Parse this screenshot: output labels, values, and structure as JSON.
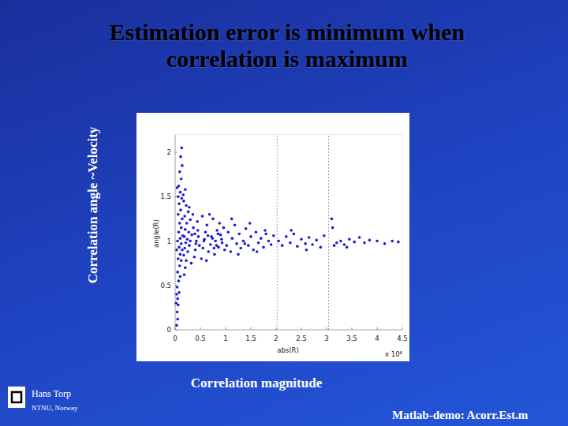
{
  "slide": {
    "title": "Estimation error is minimum when correlation is maximum",
    "y_caption": "Correlation angle ~Velocity",
    "x_caption": "Correlation magnitude",
    "author": "Hans Torp",
    "affiliation": "NTNU, Norway",
    "footer": "Matlab-demo: Acorr.Est.m"
  },
  "chart_data": {
    "type": "scatter",
    "x_label": "abs(R)",
    "y_label": "angle(R)",
    "x_multiplier": "x 10⁶",
    "xlim": [
      0,
      4.5
    ],
    "ylim": [
      0,
      2.2
    ],
    "xticks": [
      0,
      0.5,
      1,
      1.5,
      2,
      2.5,
      3,
      3.5,
      4,
      4.5
    ],
    "yticks": [
      0,
      0.5,
      1,
      1.5,
      2
    ],
    "vlines": [
      2.02,
      3.04
    ],
    "series": [
      {
        "color": "#1c1cd6",
        "marker": "dot",
        "x": [
          0.03,
          0.05,
          0.04,
          0.06,
          0.05,
          0.08,
          0.04,
          0.07,
          0.1,
          0.05,
          0.09,
          0.12,
          0.06,
          0.1,
          0.14,
          0.08,
          0.12,
          0.05,
          0.1,
          0.15,
          0.07,
          0.12,
          0.09,
          0.14,
          0.06,
          0.11,
          0.08,
          0.13,
          0.1,
          0.07,
          0.12,
          0.09,
          0.14,
          0.11,
          0.13,
          0.03,
          0.02,
          0.04,
          0.03,
          0.06,
          0.18,
          0.2,
          0.22,
          0.17,
          0.25,
          0.19,
          0.28,
          0.21,
          0.3,
          0.24,
          0.18,
          0.33,
          0.27,
          0.2,
          0.36,
          0.23,
          0.3,
          0.19,
          0.26,
          0.22,
          0.17,
          0.28,
          0.4,
          0.42,
          0.45,
          0.38,
          0.48,
          0.35,
          0.44,
          0.16,
          0.2,
          0.32,
          0.46,
          0.39,
          0.41,
          0.52,
          0.55,
          0.58,
          0.6,
          0.63,
          0.66,
          0.7,
          0.72,
          0.75,
          0.78,
          0.8,
          0.83,
          0.86,
          0.9,
          0.93,
          0.96,
          0.98,
          0.54,
          0.62,
          0.68,
          0.74,
          0.82,
          0.88,
          0.57,
          0.65,
          0.77,
          0.92,
          0.85,
          1.02,
          1.05,
          1.1,
          1.13,
          1.18,
          1.22,
          1.27,
          1.3,
          1.35,
          1.4,
          1.45,
          1.5,
          1.55,
          1.6,
          1.65,
          1.7,
          1.75,
          1.8,
          1.85,
          1.9,
          1.95,
          1.12,
          1.25,
          1.48,
          1.62,
          1.78,
          1.38,
          2.05,
          2.12,
          2.2,
          2.28,
          2.35,
          2.42,
          2.5,
          2.58,
          2.65,
          2.72,
          2.8,
          2.88,
          2.95,
          2.3,
          2.6,
          3.1,
          3.12,
          3.15,
          3.2,
          3.28,
          3.35,
          3.45,
          3.55,
          3.65,
          3.75,
          3.85,
          4.0,
          4.15,
          4.3,
          4.42,
          3.4
        ],
        "values": [
          0.05,
          0.12,
          0.2,
          0.28,
          0.35,
          0.42,
          0.48,
          0.55,
          0.6,
          0.65,
          0.72,
          0.78,
          0.8,
          0.85,
          0.9,
          0.93,
          0.97,
          1.0,
          1.03,
          1.06,
          1.1,
          1.15,
          1.2,
          1.25,
          1.3,
          1.35,
          1.42,
          1.48,
          1.55,
          1.62,
          1.7,
          1.78,
          1.85,
          1.95,
          2.05,
          0.4,
          0.3,
          1.6,
          0.9,
          1.5,
          0.62,
          0.7,
          0.78,
          0.84,
          0.88,
          0.92,
          0.95,
          0.98,
          1.0,
          1.02,
          1.05,
          1.07,
          1.1,
          1.13,
          1.15,
          1.2,
          1.24,
          1.28,
          1.33,
          1.4,
          1.45,
          1.38,
          0.9,
          1.0,
          1.12,
          0.82,
          0.95,
          1.3,
          1.22,
          1.52,
          1.58,
          0.75,
          1.05,
          1.08,
          0.97,
          0.8,
          0.92,
          1.02,
          1.1,
          1.18,
          0.88,
          0.96,
          1.05,
          1.25,
          0.85,
          1.0,
          1.12,
          0.93,
          1.07,
          0.98,
          1.15,
          0.9,
          1.28,
          0.78,
          1.3,
          1.03,
          0.95,
          1.2,
          1.0,
          1.06,
          0.92,
          1.02,
          1.08,
          0.95,
          1.1,
          0.88,
          1.03,
          1.18,
          0.97,
          1.08,
          0.92,
          1.0,
          1.14,
          0.95,
          1.05,
          0.9,
          1.1,
          0.98,
          1.03,
          0.93,
          1.08,
          1.0,
          0.96,
          1.06,
          1.25,
          0.85,
          1.2,
          0.88,
          1.12,
          0.97,
          1.0,
          0.95,
          1.05,
          0.98,
          1.08,
          0.94,
          1.02,
          0.97,
          1.04,
          0.96,
          1.01,
          0.93,
          1.06,
          1.12,
          0.9,
          1.25,
          1.15,
          0.95,
          0.98,
          1.0,
          0.96,
          1.02,
          0.99,
          1.04,
          0.98,
          1.01,
          1.0,
          0.97,
          1.0,
          0.99,
          0.93
        ]
      }
    ]
  }
}
